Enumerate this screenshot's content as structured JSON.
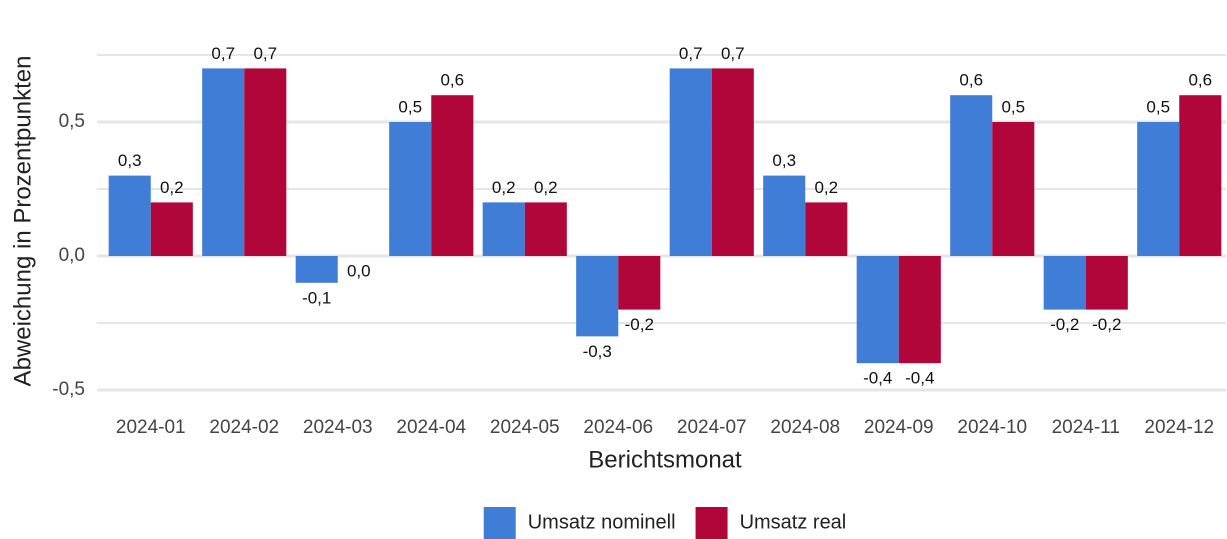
{
  "chart_data": {
    "type": "bar",
    "x_label": "Berichtsmonat",
    "y_label": "Abweichung in Prozentpunkten",
    "categories": [
      "2024-01",
      "2024-02",
      "2024-03",
      "2024-04",
      "2024-05",
      "2024-06",
      "2024-07",
      "2024-08",
      "2024-09",
      "2024-10",
      "2024-11",
      "2024-12"
    ],
    "series": [
      {
        "name": "Umsatz nominell",
        "color": "#3f7dd6",
        "values": [
          0.3,
          0.7,
          -0.1,
          0.5,
          0.2,
          -0.3,
          0.7,
          0.3,
          -0.4,
          0.6,
          -0.2,
          0.5
        ],
        "value_labels": [
          "0,3",
          "0,7",
          "-0,1",
          "0,5",
          "0,2",
          "-0,3",
          "0,7",
          "0,3",
          "-0,4",
          "0,6",
          "-0,2",
          "0,5"
        ]
      },
      {
        "name": "Umsatz real",
        "color": "#b0063a",
        "values": [
          0.2,
          0.7,
          0.0,
          0.6,
          0.2,
          -0.2,
          0.7,
          0.2,
          -0.4,
          0.5,
          -0.2,
          0.6
        ],
        "value_labels": [
          "0,2",
          "0,7",
          "0,0",
          "0,6",
          "0,2",
          "-0,2",
          "0,7",
          "0,2",
          "-0,4",
          "0,5",
          "-0,2",
          "0,6"
        ]
      }
    ],
    "ylim": [
      -0.54,
      0.8
    ],
    "yticks": [
      {
        "value": -0.5,
        "label": "-0,5"
      },
      {
        "value": 0,
        "label": "0,0"
      },
      {
        "value": 0.5,
        "label": "0,5"
      }
    ],
    "minor_yticks": [
      -0.25,
      0.25,
      0.75
    ],
    "grid": true,
    "legend": "bottom"
  }
}
